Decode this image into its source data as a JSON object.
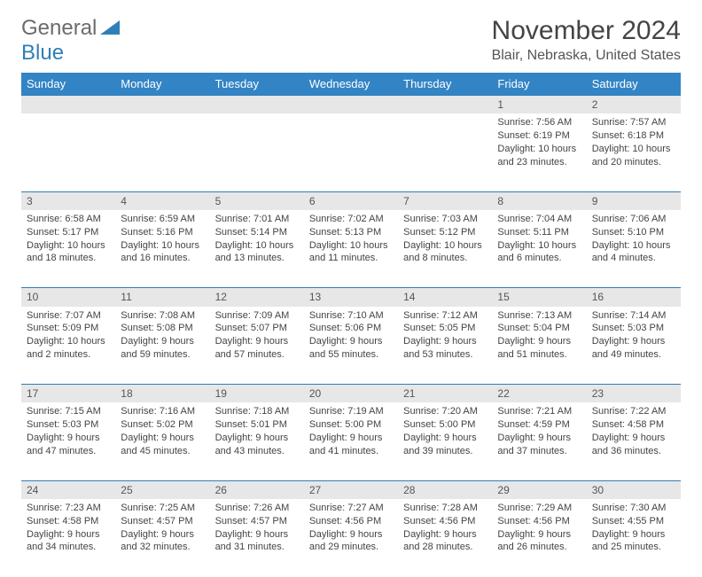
{
  "logo": {
    "text1": "General",
    "text2": "Blue"
  },
  "title": "November 2024",
  "location": "Blair, Nebraska, United States",
  "colors": {
    "header_bg": "#3384c5",
    "header_text": "#ffffff",
    "daynum_bg": "#e7e7e7",
    "border": "#2f7fb8",
    "text": "#444444",
    "logo_gray": "#6b6b6b",
    "logo_blue": "#2f7fb8"
  },
  "day_headers": [
    "Sunday",
    "Monday",
    "Tuesday",
    "Wednesday",
    "Thursday",
    "Friday",
    "Saturday"
  ],
  "weeks": [
    {
      "nums": [
        "",
        "",
        "",
        "",
        "",
        "1",
        "2"
      ],
      "cells": [
        null,
        null,
        null,
        null,
        null,
        {
          "sunrise": "7:56 AM",
          "sunset": "6:19 PM",
          "daylight": "10 hours and 23 minutes."
        },
        {
          "sunrise": "7:57 AM",
          "sunset": "6:18 PM",
          "daylight": "10 hours and 20 minutes."
        }
      ]
    },
    {
      "nums": [
        "3",
        "4",
        "5",
        "6",
        "7",
        "8",
        "9"
      ],
      "cells": [
        {
          "sunrise": "6:58 AM",
          "sunset": "5:17 PM",
          "daylight": "10 hours and 18 minutes."
        },
        {
          "sunrise": "6:59 AM",
          "sunset": "5:16 PM",
          "daylight": "10 hours and 16 minutes."
        },
        {
          "sunrise": "7:01 AM",
          "sunset": "5:14 PM",
          "daylight": "10 hours and 13 minutes."
        },
        {
          "sunrise": "7:02 AM",
          "sunset": "5:13 PM",
          "daylight": "10 hours and 11 minutes."
        },
        {
          "sunrise": "7:03 AM",
          "sunset": "5:12 PM",
          "daylight": "10 hours and 8 minutes."
        },
        {
          "sunrise": "7:04 AM",
          "sunset": "5:11 PM",
          "daylight": "10 hours and 6 minutes."
        },
        {
          "sunrise": "7:06 AM",
          "sunset": "5:10 PM",
          "daylight": "10 hours and 4 minutes."
        }
      ]
    },
    {
      "nums": [
        "10",
        "11",
        "12",
        "13",
        "14",
        "15",
        "16"
      ],
      "cells": [
        {
          "sunrise": "7:07 AM",
          "sunset": "5:09 PM",
          "daylight": "10 hours and 2 minutes."
        },
        {
          "sunrise": "7:08 AM",
          "sunset": "5:08 PM",
          "daylight": "9 hours and 59 minutes."
        },
        {
          "sunrise": "7:09 AM",
          "sunset": "5:07 PM",
          "daylight": "9 hours and 57 minutes."
        },
        {
          "sunrise": "7:10 AM",
          "sunset": "5:06 PM",
          "daylight": "9 hours and 55 minutes."
        },
        {
          "sunrise": "7:12 AM",
          "sunset": "5:05 PM",
          "daylight": "9 hours and 53 minutes."
        },
        {
          "sunrise": "7:13 AM",
          "sunset": "5:04 PM",
          "daylight": "9 hours and 51 minutes."
        },
        {
          "sunrise": "7:14 AM",
          "sunset": "5:03 PM",
          "daylight": "9 hours and 49 minutes."
        }
      ]
    },
    {
      "nums": [
        "17",
        "18",
        "19",
        "20",
        "21",
        "22",
        "23"
      ],
      "cells": [
        {
          "sunrise": "7:15 AM",
          "sunset": "5:03 PM",
          "daylight": "9 hours and 47 minutes."
        },
        {
          "sunrise": "7:16 AM",
          "sunset": "5:02 PM",
          "daylight": "9 hours and 45 minutes."
        },
        {
          "sunrise": "7:18 AM",
          "sunset": "5:01 PM",
          "daylight": "9 hours and 43 minutes."
        },
        {
          "sunrise": "7:19 AM",
          "sunset": "5:00 PM",
          "daylight": "9 hours and 41 minutes."
        },
        {
          "sunrise": "7:20 AM",
          "sunset": "5:00 PM",
          "daylight": "9 hours and 39 minutes."
        },
        {
          "sunrise": "7:21 AM",
          "sunset": "4:59 PM",
          "daylight": "9 hours and 37 minutes."
        },
        {
          "sunrise": "7:22 AM",
          "sunset": "4:58 PM",
          "daylight": "9 hours and 36 minutes."
        }
      ]
    },
    {
      "nums": [
        "24",
        "25",
        "26",
        "27",
        "28",
        "29",
        "30"
      ],
      "cells": [
        {
          "sunrise": "7:23 AM",
          "sunset": "4:58 PM",
          "daylight": "9 hours and 34 minutes."
        },
        {
          "sunrise": "7:25 AM",
          "sunset": "4:57 PM",
          "daylight": "9 hours and 32 minutes."
        },
        {
          "sunrise": "7:26 AM",
          "sunset": "4:57 PM",
          "daylight": "9 hours and 31 minutes."
        },
        {
          "sunrise": "7:27 AM",
          "sunset": "4:56 PM",
          "daylight": "9 hours and 29 minutes."
        },
        {
          "sunrise": "7:28 AM",
          "sunset": "4:56 PM",
          "daylight": "9 hours and 28 minutes."
        },
        {
          "sunrise": "7:29 AM",
          "sunset": "4:56 PM",
          "daylight": "9 hours and 26 minutes."
        },
        {
          "sunrise": "7:30 AM",
          "sunset": "4:55 PM",
          "daylight": "9 hours and 25 minutes."
        }
      ]
    }
  ],
  "labels": {
    "sunrise": "Sunrise: ",
    "sunset": "Sunset: ",
    "daylight": "Daylight: "
  }
}
